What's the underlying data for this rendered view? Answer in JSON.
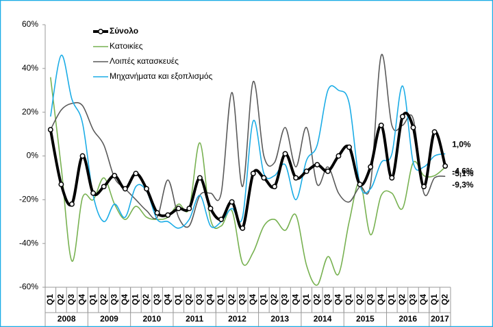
{
  "chart_data": {
    "type": "line",
    "categories": [
      "Q1",
      "Q2",
      "Q3",
      "Q4",
      "Q1",
      "Q2",
      "Q3",
      "Q4",
      "Q1",
      "Q2",
      "Q3",
      "Q4",
      "Q1",
      "Q2",
      "Q3",
      "Q4",
      "Q1",
      "Q2",
      "Q3",
      "Q4",
      "Q1",
      "Q2",
      "Q3",
      "Q4",
      "Q1",
      "Q2",
      "Q3",
      "Q4",
      "Q1",
      "Q2",
      "Q3",
      "Q4",
      "Q1",
      "Q2",
      "Q3",
      "Q4",
      "Q1",
      "Q2"
    ],
    "years": [
      "2008",
      "2009",
      "2010",
      "2011",
      "2012",
      "2013",
      "2014",
      "2015",
      "2016",
      "2017"
    ],
    "ylim": [
      -60,
      60
    ],
    "yticks": [
      {
        "value": -60,
        "label": "-60%"
      },
      {
        "value": -40,
        "label": "-40%"
      },
      {
        "value": -20,
        "label": "-20%"
      },
      {
        "value": 0,
        "label": "0%"
      },
      {
        "value": 20,
        "label": "20%"
      },
      {
        "value": 40,
        "label": "40%"
      },
      {
        "value": 60,
        "label": "60%"
      }
    ],
    "series": [
      {
        "name": "Σύνολο",
        "color": "#000000",
        "markers": true,
        "values": [
          12,
          -13,
          -22,
          0,
          -17,
          -14,
          -9,
          -15,
          -8,
          -15,
          -26,
          -27,
          -24,
          -24,
          -10,
          -24,
          -29,
          -21,
          -33,
          -8,
          -10,
          -14,
          1,
          -10,
          -7,
          -4,
          -7,
          0,
          4,
          -13,
          -5,
          14,
          -10,
          18,
          13,
          -14,
          11,
          -4.6
        ],
        "value_labels": [
          null,
          null,
          null,
          null,
          null,
          null,
          null,
          null,
          null,
          null,
          null,
          null,
          null,
          null,
          null,
          null,
          null,
          null,
          null,
          null,
          null,
          null,
          null,
          null,
          null,
          null,
          null,
          null,
          null,
          null,
          null,
          null,
          null,
          null,
          null,
          null,
          null,
          "-4,6%"
        ]
      },
      {
        "name": "Κατοικίες",
        "color": "#77b150",
        "markers": false,
        "values": [
          36,
          -5,
          -48,
          -19,
          -20,
          -10,
          -22,
          -29,
          -23,
          -28,
          -29,
          -28,
          -22,
          -24,
          6,
          -29,
          -32,
          -25,
          -49,
          -44,
          -32,
          -29,
          -34,
          -27,
          -50,
          -59,
          -46,
          -54,
          -30,
          -12,
          -36,
          -18,
          -17,
          -24,
          -3,
          -9,
          -9,
          -5.1
        ],
        "value_labels": [
          null,
          null,
          null,
          null,
          null,
          null,
          null,
          null,
          null,
          null,
          null,
          null,
          null,
          null,
          null,
          null,
          null,
          null,
          null,
          null,
          null,
          null,
          null,
          null,
          null,
          null,
          null,
          null,
          null,
          null,
          null,
          null,
          null,
          null,
          null,
          null,
          null,
          "-5,1%"
        ]
      },
      {
        "name": "Λοιπές κατασκευές",
        "color": "#595959",
        "markers": false,
        "values": [
          12,
          21,
          24,
          23,
          12,
          5,
          -10,
          -15,
          -20,
          -25,
          -28,
          -11,
          -28,
          -32,
          -18,
          -17,
          -17,
          29,
          -14,
          34,
          0,
          -3,
          13,
          -5,
          13,
          -13,
          -5,
          -17,
          -21,
          -14,
          -13,
          46,
          14,
          14,
          17,
          -17,
          -10,
          -9.3
        ],
        "value_labels": [
          null,
          null,
          null,
          null,
          null,
          null,
          null,
          null,
          null,
          null,
          null,
          null,
          null,
          null,
          null,
          null,
          null,
          null,
          null,
          null,
          null,
          null,
          null,
          null,
          null,
          null,
          null,
          null,
          null,
          null,
          null,
          null,
          null,
          null,
          null,
          null,
          null,
          "-9,3%"
        ]
      },
      {
        "name": "Μηχανήματα και εξοπλισμός",
        "color": "#1aace6",
        "markers": false,
        "values": [
          18,
          46,
          26,
          15,
          -18,
          -30,
          -22,
          -28,
          -14,
          -16,
          -29,
          -30,
          -33,
          -29,
          -18,
          -32,
          -30,
          -24,
          -28,
          16,
          -8,
          -9,
          -4,
          -20,
          -2,
          5,
          30,
          30,
          24,
          -13,
          -15,
          -3,
          1,
          32,
          -3,
          -5,
          0,
          1.0
        ],
        "value_labels": [
          null,
          null,
          null,
          null,
          null,
          null,
          null,
          null,
          null,
          null,
          null,
          null,
          null,
          null,
          null,
          null,
          null,
          null,
          null,
          null,
          null,
          null,
          null,
          null,
          null,
          null,
          null,
          null,
          null,
          null,
          null,
          null,
          null,
          null,
          null,
          null,
          null,
          "1,0%"
        ]
      }
    ]
  }
}
